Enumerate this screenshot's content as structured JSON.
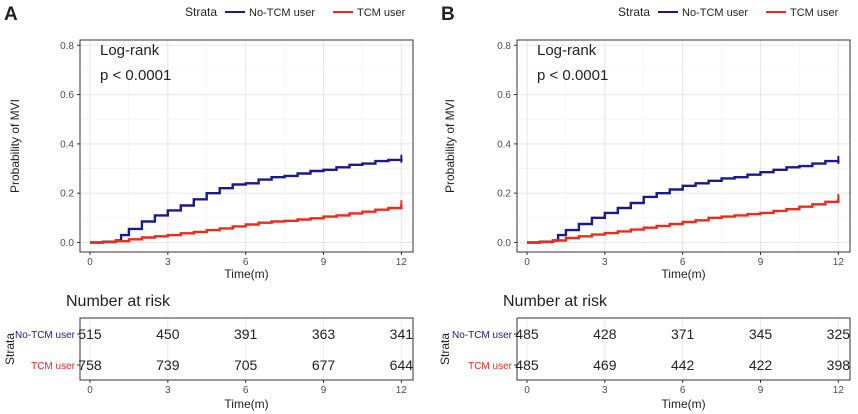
{
  "legend": {
    "title": "Strata",
    "entries": [
      {
        "label": "No-TCM user",
        "color": "#1a1a8c"
      },
      {
        "label": "TCM user",
        "color": "#ee2a1b"
      }
    ]
  },
  "chart_data": [
    {
      "panel_label": "A",
      "type": "line",
      "title": "",
      "xlabel": "Time(m)",
      "ylabel": "Probability of MVI",
      "xlim": [
        0,
        12
      ],
      "ylim": [
        0,
        0.8
      ],
      "xticks": [
        "0",
        "3",
        "6",
        "9",
        "12"
      ],
      "yticks": [
        "0.0",
        "0.2",
        "0.4",
        "0.6",
        "0.8"
      ],
      "annotation": [
        "Log-rank",
        "p < 0.0001"
      ],
      "series": [
        {
          "name": "No-TCM user",
          "color": "#1a1a8c",
          "x": [
            0,
            0.5,
            1.0,
            1.2,
            1.5,
            2.0,
            2.5,
            3.0,
            3.5,
            4.0,
            4.5,
            5.0,
            5.5,
            6.0,
            6.5,
            7.0,
            7.5,
            8.0,
            8.5,
            9.0,
            9.5,
            10.0,
            10.5,
            11.0,
            11.5,
            12.0
          ],
          "y": [
            0,
            0.003,
            0.008,
            0.03,
            0.055,
            0.085,
            0.11,
            0.13,
            0.15,
            0.175,
            0.2,
            0.22,
            0.235,
            0.24,
            0.255,
            0.265,
            0.27,
            0.28,
            0.29,
            0.295,
            0.305,
            0.315,
            0.32,
            0.33,
            0.335,
            0.34
          ]
        },
        {
          "name": "TCM user",
          "color": "#ee2a1b",
          "x": [
            0,
            0.5,
            1.0,
            1.5,
            2.0,
            2.5,
            3.0,
            3.5,
            4.0,
            4.5,
            5.0,
            5.5,
            6.0,
            6.5,
            7.0,
            7.5,
            8.0,
            8.5,
            9.0,
            9.5,
            10.0,
            10.5,
            11.0,
            11.5,
            12.0
          ],
          "y": [
            0,
            0.002,
            0.005,
            0.013,
            0.02,
            0.025,
            0.03,
            0.037,
            0.043,
            0.05,
            0.057,
            0.065,
            0.073,
            0.08,
            0.085,
            0.088,
            0.093,
            0.098,
            0.105,
            0.11,
            0.118,
            0.125,
            0.133,
            0.14,
            0.155
          ]
        }
      ],
      "risk_table": {
        "title": "Number at risk",
        "ylabel": "Strata",
        "xlabel": "Time(m)",
        "times": [
          "0",
          "3",
          "6",
          "9",
          "12"
        ],
        "rows": [
          {
            "label": "No-TCM user",
            "color": "#1a1a8c",
            "values": [
              "515",
              "450",
              "391",
              "363",
              "341"
            ]
          },
          {
            "label": "TCM user",
            "color": "#ee2a1b",
            "values": [
              "758",
              "739",
              "705",
              "677",
              "644"
            ]
          }
        ]
      }
    },
    {
      "panel_label": "B",
      "type": "line",
      "title": "",
      "xlabel": "Time(m)",
      "ylabel": "Probability of MVI",
      "xlim": [
        0,
        12
      ],
      "ylim": [
        0,
        0.8
      ],
      "xticks": [
        "0",
        "3",
        "6",
        "9",
        "12"
      ],
      "yticks": [
        "0.0",
        "0.2",
        "0.4",
        "0.6",
        "0.8"
      ],
      "annotation": [
        "Log-rank",
        "p < 0.0001"
      ],
      "series": [
        {
          "name": "No-TCM user",
          "color": "#1a1a8c",
          "x": [
            0,
            0.5,
            1.0,
            1.2,
            1.5,
            2.0,
            2.5,
            3.0,
            3.5,
            4.0,
            4.5,
            5.0,
            5.5,
            6.0,
            6.5,
            7.0,
            7.5,
            8.0,
            8.5,
            9.0,
            9.5,
            10.0,
            10.5,
            11.0,
            11.5,
            12.0
          ],
          "y": [
            0,
            0.003,
            0.008,
            0.03,
            0.05,
            0.075,
            0.1,
            0.12,
            0.14,
            0.16,
            0.185,
            0.2,
            0.215,
            0.23,
            0.24,
            0.25,
            0.26,
            0.265,
            0.275,
            0.285,
            0.295,
            0.305,
            0.31,
            0.32,
            0.33,
            0.335
          ]
        },
        {
          "name": "TCM user",
          "color": "#ee2a1b",
          "x": [
            0,
            0.5,
            1.0,
            1.5,
            2.0,
            2.5,
            3.0,
            3.5,
            4.0,
            4.5,
            5.0,
            5.5,
            6.0,
            6.5,
            7.0,
            7.5,
            8.0,
            8.5,
            9.0,
            9.5,
            10.0,
            10.5,
            11.0,
            11.5,
            12.0
          ],
          "y": [
            0,
            0.002,
            0.008,
            0.018,
            0.025,
            0.032,
            0.038,
            0.045,
            0.052,
            0.06,
            0.067,
            0.075,
            0.083,
            0.09,
            0.1,
            0.105,
            0.11,
            0.115,
            0.12,
            0.128,
            0.135,
            0.145,
            0.155,
            0.165,
            0.18
          ]
        }
      ],
      "risk_table": {
        "title": "Number at risk",
        "ylabel": "Strata",
        "xlabel": "Time(m)",
        "times": [
          "0",
          "3",
          "6",
          "9",
          "12"
        ],
        "rows": [
          {
            "label": "No-TCM user",
            "color": "#1a1a8c",
            "values": [
              "485",
              "428",
              "371",
              "345",
              "325"
            ]
          },
          {
            "label": "TCM user",
            "color": "#ee2a1b",
            "values": [
              "485",
              "469",
              "442",
              "422",
              "398"
            ]
          }
        ]
      }
    }
  ]
}
